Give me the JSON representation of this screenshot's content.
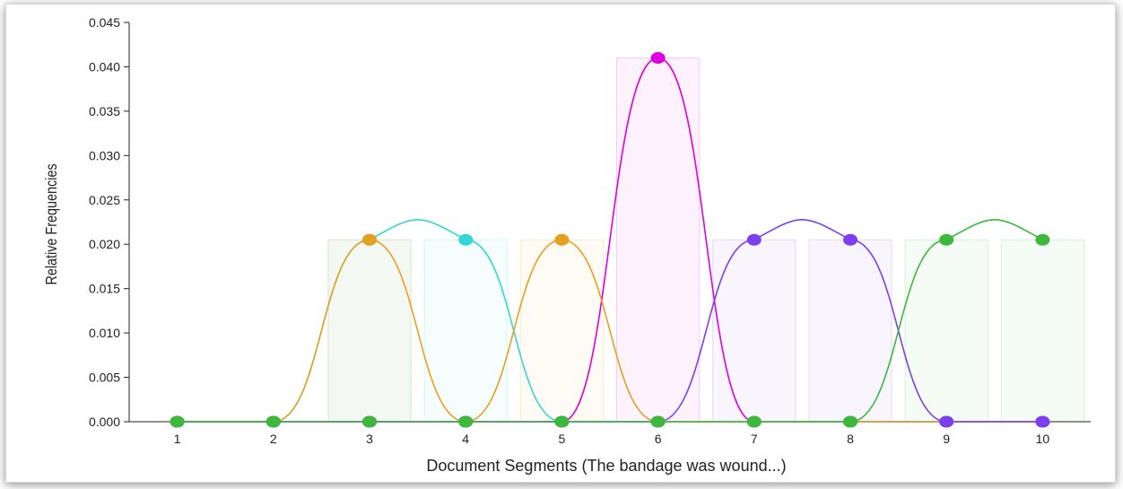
{
  "chart_data": {
    "type": "line",
    "title": "",
    "xlabel": "Document Segments (The bandage was wound...)",
    "ylabel": "Relative Frequencies",
    "categories": [
      "1",
      "2",
      "3",
      "4",
      "5",
      "6",
      "7",
      "8",
      "9",
      "10"
    ],
    "ylim": [
      0,
      0.045
    ],
    "yticks": [
      "0.000",
      "0.005",
      "0.010",
      "0.015",
      "0.020",
      "0.025",
      "0.030",
      "0.035",
      "0.040",
      "0.045"
    ],
    "grid": false,
    "legend": "none",
    "series": [
      {
        "color": "#e000e0",
        "values": [
          0,
          0,
          0,
          0,
          0,
          0.041,
          0,
          0,
          0,
          0
        ]
      },
      {
        "color": "#33d6d6",
        "values": [
          0,
          0,
          0.0205,
          0.0205,
          0,
          0,
          0,
          0,
          0,
          0
        ]
      },
      {
        "color": "#e6a020",
        "values": [
          0,
          0,
          0.0205,
          0,
          0.0205,
          0,
          0,
          0,
          0,
          0
        ]
      },
      {
        "color": "#7b3ff0",
        "values": [
          0,
          0,
          0,
          0,
          0,
          0,
          0.0205,
          0.0205,
          0,
          0
        ]
      },
      {
        "color": "#3cb83c",
        "values": [
          0,
          0,
          0,
          0,
          0,
          0,
          0,
          0,
          0.0205,
          0.0205
        ]
      }
    ]
  }
}
